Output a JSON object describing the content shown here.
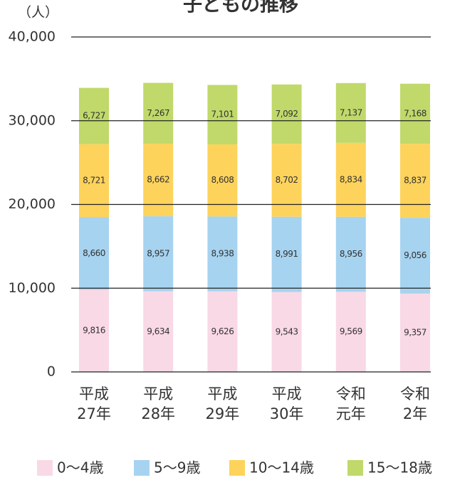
{
  "chart_data": {
    "type": "stacked_bar",
    "title": "子どもの推移",
    "y_label": "（人）",
    "categories": [
      "平成27年",
      "平成28年",
      "平成29年",
      "平成30年",
      "令和元年",
      "令和2年"
    ],
    "series": [
      {
        "name": "0〜4歳",
        "color": "#f9d9e6",
        "values": [
          9816,
          9634,
          9626,
          9543,
          9569,
          9357
        ],
        "value_labels": [
          "9,816",
          "9,634",
          "9,626",
          "9,543",
          "9,569",
          "9,357"
        ]
      },
      {
        "name": "5〜9歳",
        "color": "#a6d3f0",
        "values": [
          8660,
          8957,
          8938,
          8991,
          8956,
          9056
        ],
        "value_labels": [
          "8,660",
          "8,957",
          "8,938",
          "8,991",
          "8,956",
          "9,056"
        ]
      },
      {
        "name": "10〜14歳",
        "color": "#fdd35c",
        "values": [
          8721,
          8662,
          8608,
          8702,
          8834,
          8837
        ],
        "value_labels": [
          "8,721",
          "8,662",
          "8,608",
          "8,702",
          "8,834",
          "8,837"
        ]
      },
      {
        "name": "15〜18歳",
        "color": "#c0d96a",
        "values": [
          6727,
          7267,
          7101,
          7092,
          7137,
          7168
        ],
        "value_labels": [
          "6,727",
          "7,267",
          "7,101",
          "7,092",
          "7,137",
          "7,168"
        ]
      }
    ],
    "ylim": [
      0,
      40000
    ],
    "yticks": [
      0,
      {
        "value": 10000,
        "label": "10,000"
      },
      {
        "value": 20000,
        "label": "20,000"
      },
      {
        "value": 30000,
        "label": "30,000"
      },
      {
        "value": 40000,
        "label": "40,000"
      }
    ],
    "grid": true
  }
}
